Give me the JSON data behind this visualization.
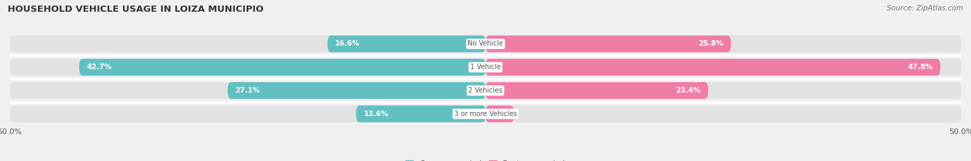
{
  "title": "HOUSEHOLD VEHICLE USAGE IN LOIZA MUNICIPIO",
  "source": "Source: ZipAtlas.com",
  "categories": [
    "No Vehicle",
    "1 Vehicle",
    "2 Vehicles",
    "3 or more Vehicles"
  ],
  "owner_values": [
    16.6,
    42.7,
    27.1,
    13.6
  ],
  "renter_values": [
    25.8,
    47.8,
    23.4,
    3.0
  ],
  "owner_color": "#62c0c2",
  "renter_color": "#f07ca8",
  "axis_max": 50.0,
  "axis_min": -50.0,
  "bar_height": 0.72,
  "background_color": "#f0f0f0",
  "bar_bg_color": "#e2e2e2",
  "title_fontsize": 9.5,
  "label_fontsize": 7.5,
  "tick_fontsize": 8,
  "source_fontsize": 7.5,
  "legend_fontsize": 8,
  "value_label_fontsize": 7.5,
  "category_label_fontsize": 7,
  "row_sep_color": "#ffffff"
}
